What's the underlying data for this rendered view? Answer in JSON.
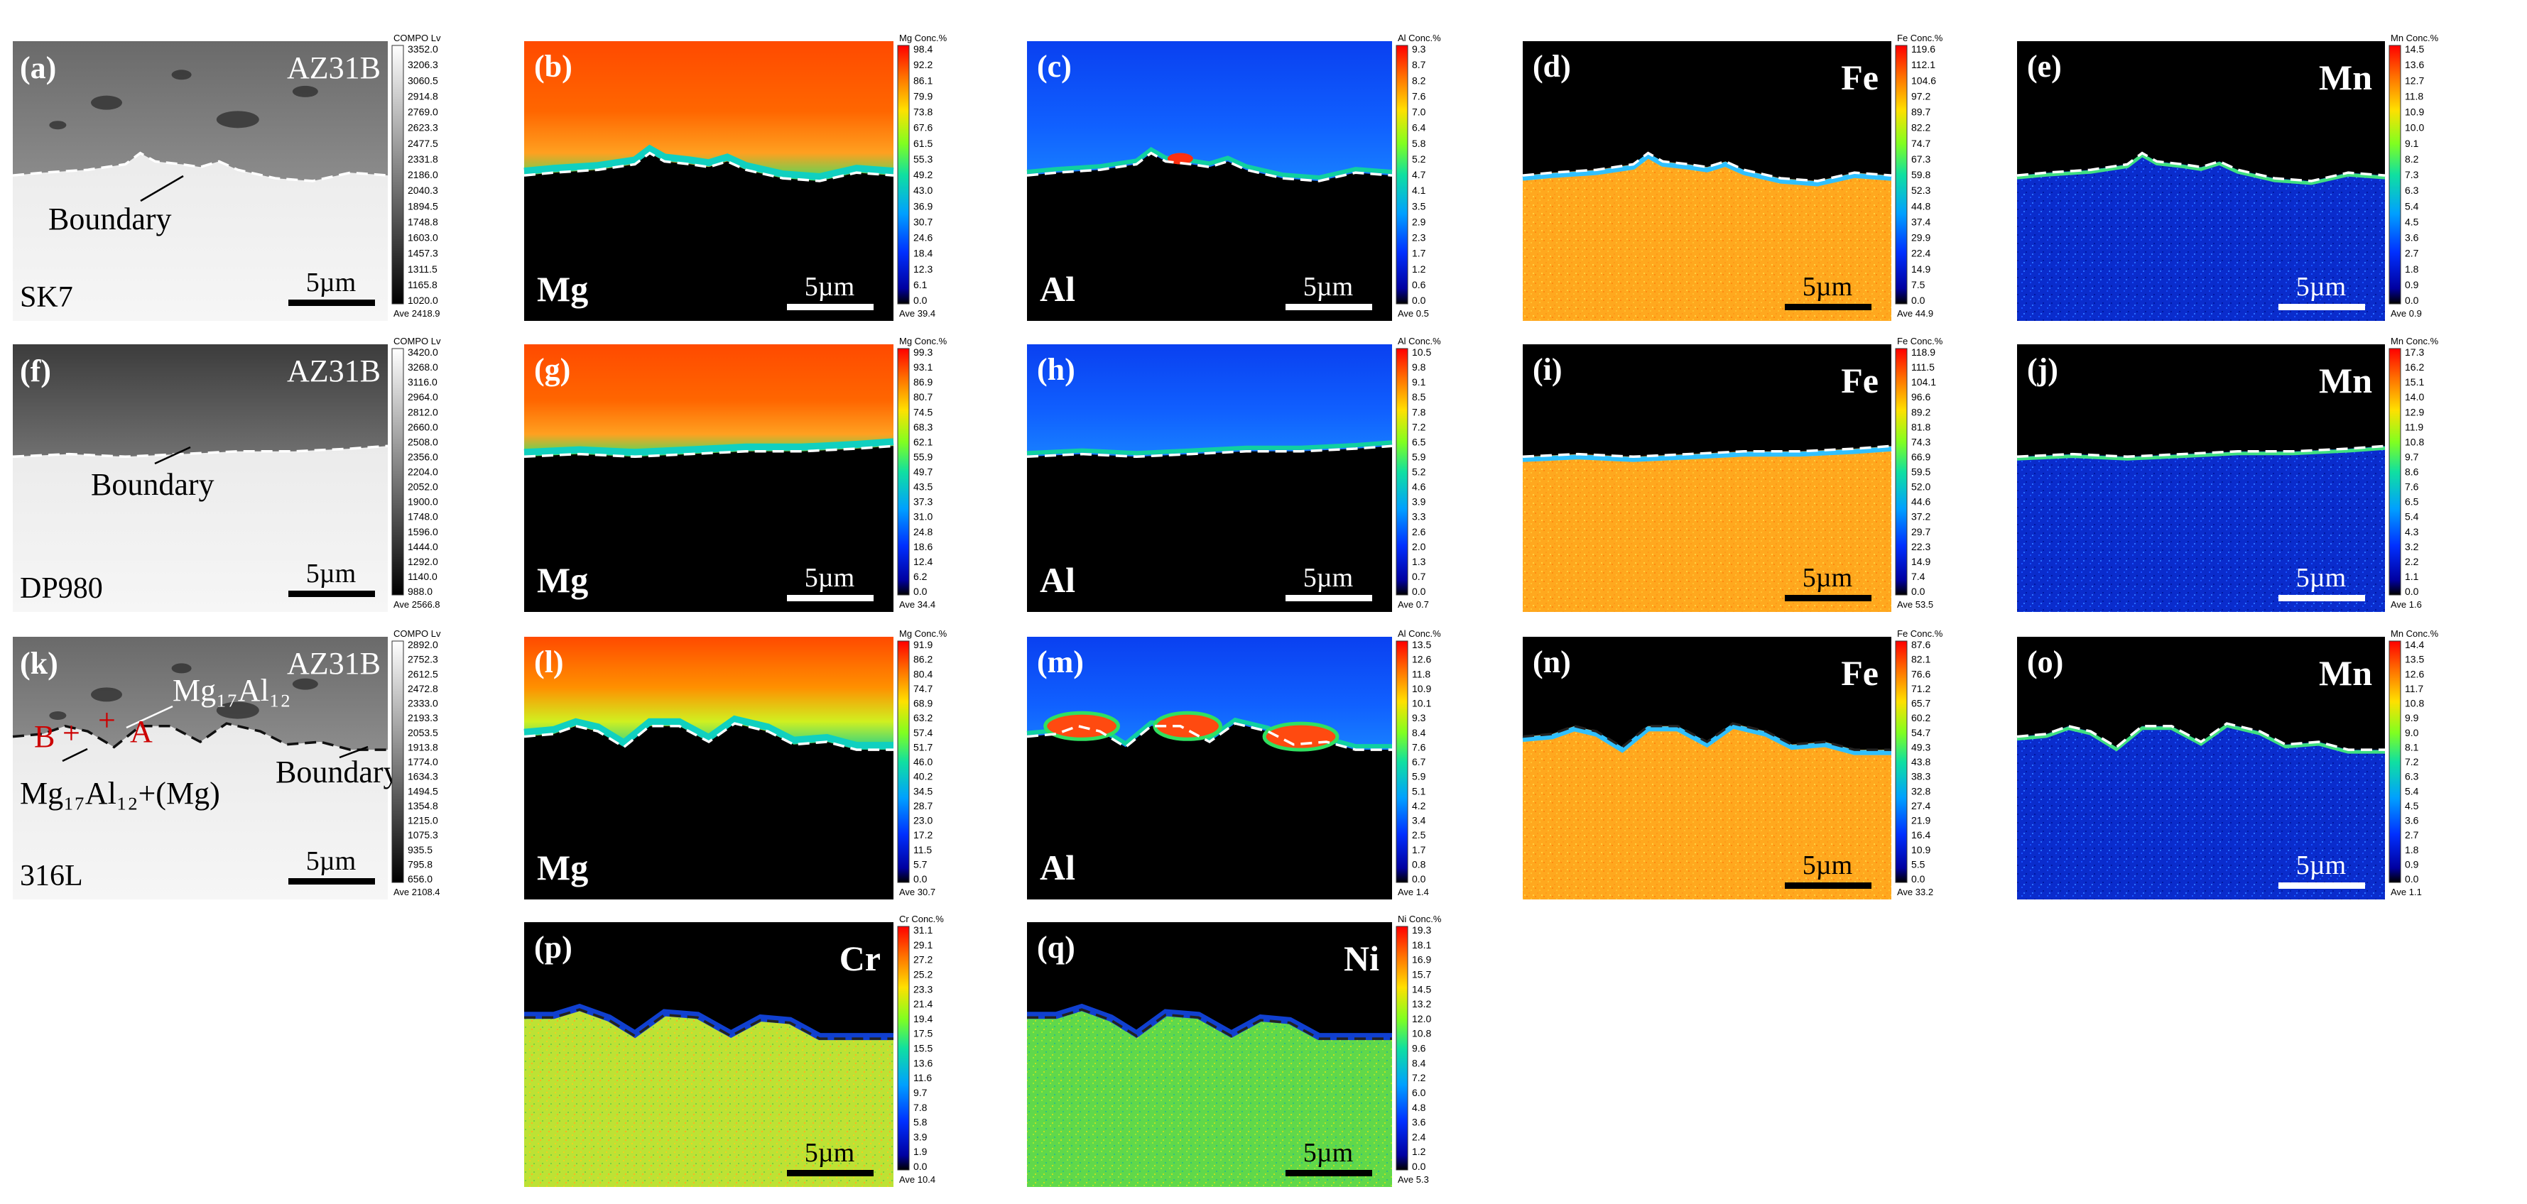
{
  "figure": {
    "rows": [
      {
        "sample": "SK7",
        "panels": [
          {
            "id": "a",
            "label": "(a)",
            "type": "compo",
            "matrix": "AZ31B",
            "boundary": "Boundary",
            "scale": "5µm",
            "cbar": {
              "head": "COMPO  Lv",
              "ticks": [
                "3352.0",
                "3206.3",
                "3060.5",
                "2914.8",
                "2769.0",
                "2623.3",
                "2477.5",
                "2331.8",
                "2186.0",
                "2040.3",
                "1894.5",
                "1748.8",
                "1603.0",
                "1457.3",
                "1311.5",
                "1165.8",
                "1020.0"
              ],
              "ave": "Ave 2418.9"
            }
          },
          {
            "id": "b",
            "label": "(b)",
            "type": "map",
            "element": "Mg",
            "elemPos": "bl",
            "scale": "5µm",
            "scaleColor": "#ffffff",
            "cmap": "mg",
            "cbar": {
              "head": "Mg  Conc.%",
              "ticks": [
                "98.4",
                "92.2",
                "86.1",
                "79.9",
                "73.8",
                "67.6",
                "61.5",
                "55.3",
                "49.2",
                "43.0",
                "36.9",
                "30.7",
                "24.6",
                "18.4",
                "12.3",
                "6.1",
                "0.0"
              ],
              "ave": "Ave 39.4"
            }
          },
          {
            "id": "c",
            "label": "(c)",
            "type": "map",
            "element": "Al",
            "elemPos": "bl",
            "scale": "5µm",
            "scaleColor": "#ffffff",
            "cmap": "al",
            "cbar": {
              "head": "Al  Conc.%",
              "ticks": [
                "9.3",
                "8.7",
                "8.2",
                "7.6",
                "7.0",
                "6.4",
                "5.8",
                "5.2",
                "4.7",
                "4.1",
                "3.5",
                "2.9",
                "2.3",
                "1.7",
                "1.2",
                "0.6",
                "0.0"
              ],
              "ave": "Ave 0.5"
            }
          },
          {
            "id": "d",
            "label": "(d)",
            "type": "map",
            "element": "Fe",
            "elemPos": "tr",
            "scale": "5µm",
            "scaleColor": "#000000",
            "cmap": "fe",
            "cbar": {
              "head": "Fe  Conc.%",
              "ticks": [
                "119.6",
                "112.1",
                "104.6",
                "97.2",
                "89.7",
                "82.2",
                "74.7",
                "67.3",
                "59.8",
                "52.3",
                "44.8",
                "37.4",
                "29.9",
                "22.4",
                "14.9",
                "7.5",
                "0.0"
              ],
              "ave": "Ave 44.9"
            }
          },
          {
            "id": "e",
            "label": "(e)",
            "type": "map",
            "element": "Mn",
            "elemPos": "tr",
            "scale": "5µm",
            "scaleColor": "#ffffff",
            "cmap": "mn",
            "cbar": {
              "head": "Mn  Conc.%",
              "ticks": [
                "14.5",
                "13.6",
                "12.7",
                "11.8",
                "10.9",
                "10.0",
                "9.1",
                "8.2",
                "7.3",
                "6.3",
                "5.4",
                "4.5",
                "3.6",
                "2.7",
                "1.8",
                "0.9",
                "0.0"
              ],
              "ave": "Ave 0.9"
            }
          }
        ]
      },
      {
        "sample": "DP980",
        "panels": [
          {
            "id": "f",
            "label": "(f)",
            "type": "compo",
            "matrix": "AZ31B",
            "boundary": "Boundary",
            "scale": "5µm",
            "cbar": {
              "head": "COMPO  Lv",
              "ticks": [
                "3420.0",
                "3268.0",
                "3116.0",
                "2964.0",
                "2812.0",
                "2660.0",
                "2508.0",
                "2356.0",
                "2204.0",
                "2052.0",
                "1900.0",
                "1748.0",
                "1596.0",
                "1444.0",
                "1292.0",
                "1140.0",
                "988.0"
              ],
              "ave": "Ave 2566.8"
            }
          },
          {
            "id": "g",
            "label": "(g)",
            "type": "map",
            "element": "Mg",
            "elemPos": "bl",
            "scale": "5µm",
            "scaleColor": "#ffffff",
            "cmap": "mg",
            "cbar": {
              "head": "Mg  Conc.%",
              "ticks": [
                "99.3",
                "93.1",
                "86.9",
                "80.7",
                "74.5",
                "68.3",
                "62.1",
                "55.9",
                "49.7",
                "43.5",
                "37.3",
                "31.0",
                "24.8",
                "18.6",
                "12.4",
                "6.2",
                "0.0"
              ],
              "ave": "Ave 34.4"
            }
          },
          {
            "id": "h",
            "label": "(h)",
            "type": "map",
            "element": "Al",
            "elemPos": "bl",
            "scale": "5µm",
            "scaleColor": "#ffffff",
            "cmap": "al",
            "cbar": {
              "head": "Al  Conc.%",
              "ticks": [
                "10.5",
                "9.8",
                "9.1",
                "8.5",
                "7.8",
                "7.2",
                "6.5",
                "5.9",
                "5.2",
                "4.6",
                "3.9",
                "3.3",
                "2.6",
                "2.0",
                "1.3",
                "0.7",
                "0.0"
              ],
              "ave": "Ave 0.7"
            }
          },
          {
            "id": "i",
            "label": "(i)",
            "type": "map",
            "element": "Fe",
            "elemPos": "tr",
            "scale": "5µm",
            "scaleColor": "#000000",
            "cmap": "fe",
            "cbar": {
              "head": "Fe  Conc.%",
              "ticks": [
                "118.9",
                "111.5",
                "104.1",
                "96.6",
                "89.2",
                "81.8",
                "74.3",
                "66.9",
                "59.5",
                "52.0",
                "44.6",
                "37.2",
                "29.7",
                "22.3",
                "14.9",
                "7.4",
                "0.0"
              ],
              "ave": "Ave 53.5"
            }
          },
          {
            "id": "j",
            "label": "(j)",
            "type": "map",
            "element": "Mn",
            "elemPos": "tr",
            "scale": "5µm",
            "scaleColor": "#ffffff",
            "cmap": "mn",
            "cbar": {
              "head": "Mn  Conc.%",
              "ticks": [
                "17.3",
                "16.2",
                "15.1",
                "14.0",
                "12.9",
                "11.9",
                "10.8",
                "9.7",
                "8.6",
                "7.6",
                "6.5",
                "5.4",
                "4.3",
                "3.2",
                "2.2",
                "1.1",
                "0.0"
              ],
              "ave": "Ave 1.6"
            }
          }
        ]
      },
      {
        "sample": "316L",
        "panels": [
          {
            "id": "k",
            "label": "(k)",
            "type": "compo",
            "matrix": "AZ31B",
            "boundary": "Boundary",
            "scale": "5µm",
            "phase1": "Mg₁₇Al₁₂",
            "phase2": "Mg₁₇Al₁₂+(Mg)",
            "pointA": "A",
            "pointB": "B",
            "cbar": {
              "head": "COMPO  Lv",
              "ticks": [
                "2892.0",
                "2752.3",
                "2612.5",
                "2472.8",
                "2333.0",
                "2193.3",
                "2053.5",
                "1913.8",
                "1774.0",
                "1634.3",
                "1494.5",
                "1354.8",
                "1215.0",
                "1075.3",
                "935.5",
                "795.8",
                "656.0"
              ],
              "ave": "Ave 2108.4"
            }
          },
          {
            "id": "l",
            "label": "(l)",
            "type": "map",
            "element": "Mg",
            "elemPos": "bl",
            "scale": "5µm",
            "scaleColor": "#000000",
            "cmap": "mg",
            "cbar": {
              "head": "Mg  Conc.%",
              "ticks": [
                "91.9",
                "86.2",
                "80.4",
                "74.7",
                "68.9",
                "63.2",
                "57.4",
                "51.7",
                "46.0",
                "40.2",
                "34.5",
                "28.7",
                "23.0",
                "17.2",
                "11.5",
                "5.7",
                "0.0"
              ],
              "ave": "Ave 30.7"
            }
          },
          {
            "id": "m",
            "label": "(m)",
            "type": "map",
            "element": "Al",
            "elemPos": "bl",
            "scale": "5µm",
            "scaleColor": "#000000",
            "cmap": "al3",
            "cbar": {
              "head": "Al  Conc.%",
              "ticks": [
                "13.5",
                "12.6",
                "11.8",
                "10.9",
                "10.1",
                "9.3",
                "8.4",
                "7.6",
                "6.7",
                "5.9",
                "5.1",
                "4.2",
                "3.4",
                "2.5",
                "1.7",
                "0.8",
                "0.0"
              ],
              "ave": "Ave 1.4"
            }
          },
          {
            "id": "n",
            "label": "(n)",
            "type": "map",
            "element": "Fe",
            "elemPos": "tr",
            "scale": "5µm",
            "scaleColor": "#000000",
            "cmap": "fe",
            "cbar": {
              "head": "Fe  Conc.%",
              "ticks": [
                "87.6",
                "82.1",
                "76.6",
                "71.2",
                "65.7",
                "60.2",
                "54.7",
                "49.3",
                "43.8",
                "38.3",
                "32.8",
                "27.4",
                "21.9",
                "16.4",
                "10.9",
                "5.5",
                "0.0"
              ],
              "ave": "Ave 33.2"
            }
          },
          {
            "id": "o",
            "label": "(o)",
            "type": "map",
            "element": "Mn",
            "elemPos": "tr",
            "scale": "5µm",
            "scaleColor": "#ffffff",
            "cmap": "mn",
            "cbar": {
              "head": "Mn  Conc.%",
              "ticks": [
                "14.4",
                "13.5",
                "12.6",
                "11.7",
                "10.8",
                "9.9",
                "9.0",
                "8.1",
                "7.2",
                "6.3",
                "5.4",
                "4.5",
                "3.6",
                "2.7",
                "1.8",
                "0.9",
                "0.0"
              ],
              "ave": "Ave 1.1"
            }
          }
        ]
      },
      {
        "sample": "",
        "panels": [
          {
            "id": "p",
            "label": "(p)",
            "type": "map",
            "element": "Cr",
            "elemPos": "tr",
            "scale": "5µm",
            "scaleColor": "#000000",
            "cmap": "cr",
            "cbar": {
              "head": "Cr  Conc.%",
              "ticks": [
                "31.1",
                "29.1",
                "27.2",
                "25.2",
                "23.3",
                "21.4",
                "19.4",
                "17.5",
                "15.5",
                "13.6",
                "11.6",
                "9.7",
                "7.8",
                "5.8",
                "3.9",
                "1.9",
                "0.0"
              ],
              "ave": "Ave 10.4"
            }
          },
          {
            "id": "q",
            "label": "(q)",
            "type": "map",
            "element": "Ni",
            "elemPos": "tr",
            "scale": "5µm",
            "scaleColor": "#000000",
            "cmap": "ni",
            "cbar": {
              "head": "Ni  Conc.%",
              "ticks": [
                "19.3",
                "18.1",
                "16.9",
                "15.7",
                "14.5",
                "13.2",
                "12.0",
                "10.8",
                "9.6",
                "8.4",
                "7.2",
                "6.0",
                "4.8",
                "3.6",
                "2.4",
                "1.2",
                "0.0"
              ],
              "ave": "Ave 5.3"
            }
          }
        ]
      }
    ]
  }
}
